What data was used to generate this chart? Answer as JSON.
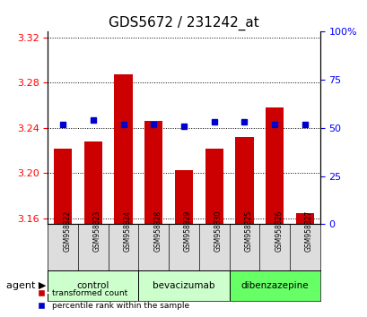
{
  "title": "GDS5672 / 231242_at",
  "samples": [
    "GSM958322",
    "GSM958323",
    "GSM958324",
    "GSM958328",
    "GSM958329",
    "GSM958330",
    "GSM958325",
    "GSM958326",
    "GSM958327"
  ],
  "transformed_count": [
    3.222,
    3.228,
    3.287,
    3.246,
    3.203,
    3.222,
    3.232,
    3.258,
    3.165
  ],
  "percentile_rank": [
    52,
    54,
    52,
    52,
    51,
    53,
    53,
    52,
    52
  ],
  "groups": [
    {
      "name": "control",
      "indices": [
        0,
        1,
        2
      ],
      "color": "#ccffcc"
    },
    {
      "name": "bevacizumab",
      "indices": [
        3,
        4,
        5
      ],
      "color": "#ccffcc"
    },
    {
      "name": "dibenzazepine",
      "indices": [
        6,
        7,
        8
      ],
      "color": "#66ff66"
    }
  ],
  "ylim_left": [
    3.155,
    3.325
  ],
  "ylim_right": [
    0,
    100
  ],
  "yticks_left": [
    3.16,
    3.2,
    3.24,
    3.28,
    3.32
  ],
  "yticks_right": [
    0,
    25,
    50,
    75,
    100
  ],
  "bar_color": "#cc0000",
  "dot_color": "#0000cc",
  "bar_bottom": 3.155,
  "background_color": "#ffffff",
  "plot_bg_color": "#ffffff",
  "legend_items": [
    "transformed count",
    "percentile rank within the sample"
  ]
}
